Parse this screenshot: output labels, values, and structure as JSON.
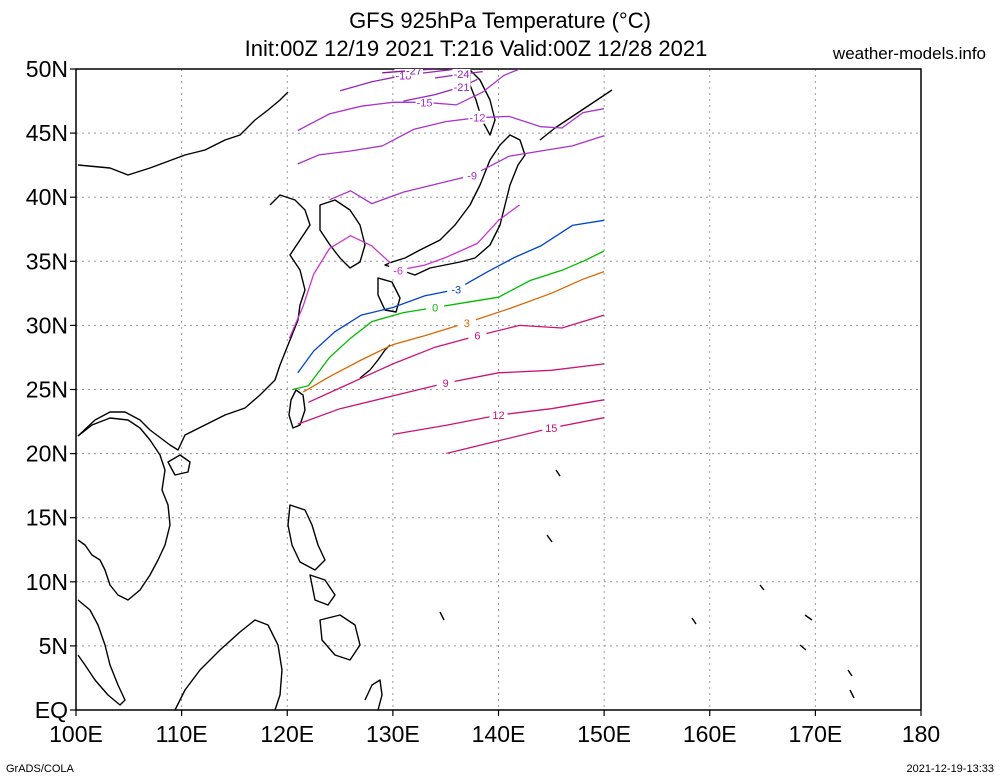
{
  "header": {
    "title_line1": "GFS 925hPa Temperature (°C)",
    "title_line2": "Init:00Z 12/19 2021 T:216 Valid:00Z 12/28 2021",
    "site": "weather-models.info"
  },
  "footer": {
    "left": "GrADS/COLA",
    "right": "2021-12-19-13:33"
  },
  "map": {
    "lat_labels": [
      "EQ",
      "5N",
      "10N",
      "15N",
      "20N",
      "25N",
      "30N",
      "35N",
      "40N",
      "45N",
      "50N"
    ],
    "lon_labels": [
      "100E",
      "110E",
      "120E",
      "130E",
      "140E",
      "150E",
      "160E",
      "170E",
      "180"
    ],
    "lat_range": [
      0,
      50
    ],
    "lon_range": [
      100,
      180
    ],
    "data_domain": {
      "lon": [
        120,
        150
      ],
      "lat": [
        20,
        50
      ]
    },
    "grid": true,
    "contours": [
      {
        "label": "15",
        "color": "#cc1177",
        "points": [
          [
            135,
            20
          ],
          [
            140,
            21
          ],
          [
            145,
            22
          ],
          [
            150,
            22.8
          ]
        ]
      },
      {
        "label": "12",
        "color": "#cc1177",
        "points": [
          [
            130,
            21.5
          ],
          [
            135,
            22.2
          ],
          [
            140,
            23
          ],
          [
            145,
            23.5
          ],
          [
            150,
            24.2
          ]
        ]
      },
      {
        "label": "9",
        "color": "#cc1177",
        "points": [
          [
            121,
            22.3
          ],
          [
            125,
            23.5
          ],
          [
            130,
            24.5
          ],
          [
            135,
            25.5
          ],
          [
            140,
            26.3
          ],
          [
            145,
            26.5
          ],
          [
            150,
            27
          ]
        ]
      },
      {
        "label": "6",
        "color": "#cc1177",
        "points": [
          [
            122,
            24
          ],
          [
            126,
            25.5
          ],
          [
            130,
            27
          ],
          [
            134,
            28.3
          ],
          [
            138,
            29.2
          ],
          [
            142,
            30
          ],
          [
            146,
            29.8
          ],
          [
            150,
            30.8
          ]
        ]
      },
      {
        "label": "3",
        "color": "#dd6600",
        "points": [
          [
            121.5,
            24.8
          ],
          [
            124,
            26
          ],
          [
            127,
            27.3
          ],
          [
            130,
            28.5
          ],
          [
            133,
            29.2
          ],
          [
            137,
            30.2
          ],
          [
            141,
            31.3
          ],
          [
            145,
            32.5
          ],
          [
            148,
            33.6
          ],
          [
            150,
            34.2
          ]
        ]
      },
      {
        "label": "0",
        "color": "#00bb00",
        "points": [
          [
            120.5,
            25
          ],
          [
            122,
            25.3
          ],
          [
            124,
            27.5
          ],
          [
            126,
            29
          ],
          [
            128,
            30.3
          ],
          [
            131,
            31
          ],
          [
            134,
            31.4
          ],
          [
            137,
            31.8
          ],
          [
            140,
            32.2
          ],
          [
            143,
            33.5
          ],
          [
            146,
            34.3
          ],
          [
            148,
            35
          ],
          [
            150,
            35.8
          ]
        ]
      },
      {
        "label": "-3",
        "color": "#0044cc",
        "points": [
          [
            121,
            26.3
          ],
          [
            122.5,
            28
          ],
          [
            124.5,
            29.5
          ],
          [
            127,
            30.8
          ],
          [
            130,
            31.4
          ],
          [
            133,
            32.3
          ],
          [
            136,
            32.8
          ],
          [
            139,
            34.2
          ],
          [
            141.5,
            35.3
          ],
          [
            144,
            36.2
          ],
          [
            147,
            37.8
          ],
          [
            150,
            38.2
          ]
        ]
      },
      {
        "label": "-6",
        "color": "#cc33cc",
        "points": [
          [
            120.2,
            29
          ],
          [
            121.5,
            31.5
          ],
          [
            122.5,
            34
          ],
          [
            124,
            36
          ],
          [
            126,
            37
          ],
          [
            128,
            36.2
          ],
          [
            130.5,
            34.3
          ],
          [
            133,
            34.7
          ],
          [
            135,
            35.3
          ],
          [
            138,
            36.4
          ],
          [
            140,
            38.2
          ],
          [
            142,
            39.4
          ]
        ]
      },
      {
        "label": "-9",
        "color": "#aa33cc",
        "points": [
          [
            124,
            39.8
          ],
          [
            126,
            40.5
          ],
          [
            128,
            39.5
          ],
          [
            131,
            40.4
          ],
          [
            134,
            41
          ],
          [
            137.5,
            41.7
          ],
          [
            141,
            43.2
          ],
          [
            144,
            43.6
          ],
          [
            147,
            44
          ],
          [
            150,
            44.8
          ]
        ]
      },
      {
        "label": "-12",
        "color": "#aa33cc",
        "points": [
          [
            121,
            42.6
          ],
          [
            123,
            43.3
          ],
          [
            126,
            43.6
          ],
          [
            129,
            44
          ],
          [
            132,
            45.3
          ],
          [
            135,
            45.9
          ],
          [
            138,
            46.2
          ],
          [
            141,
            46.3
          ],
          [
            144,
            45.5
          ],
          [
            146,
            45.4
          ],
          [
            148,
            46.6
          ],
          [
            150,
            46.9
          ]
        ]
      },
      {
        "label": "-15",
        "color": "#aa33cc",
        "points": [
          [
            121,
            45.2
          ],
          [
            124,
            46.5
          ],
          [
            127,
            47.1
          ],
          [
            130,
            47.4
          ],
          [
            133,
            47.4
          ],
          [
            136,
            47.2
          ],
          [
            138.5,
            48.2
          ],
          [
            140.5,
            49.5
          ],
          [
            142,
            50
          ]
        ]
      },
      {
        "label": "-18",
        "color": "#9922bb",
        "points": [
          [
            125,
            48.3
          ],
          [
            128,
            49
          ],
          [
            131,
            49.5
          ],
          [
            134,
            49.8
          ],
          [
            136,
            50
          ]
        ]
      },
      {
        "label": "-21",
        "color": "#9922bb",
        "points": [
          [
            131,
            47.5
          ],
          [
            134,
            48
          ],
          [
            136.5,
            48.6
          ],
          [
            138,
            49.2
          ]
        ]
      },
      {
        "label": "-24",
        "color": "#9922bb",
        "points": [
          [
            134,
            49.3
          ],
          [
            136.5,
            49.6
          ],
          [
            138.5,
            49.8
          ]
        ]
      },
      {
        "label": "-27",
        "color": "#8811aa",
        "points": [
          [
            129,
            49.7
          ],
          [
            132,
            49.9
          ],
          [
            134,
            50
          ]
        ]
      }
    ]
  }
}
